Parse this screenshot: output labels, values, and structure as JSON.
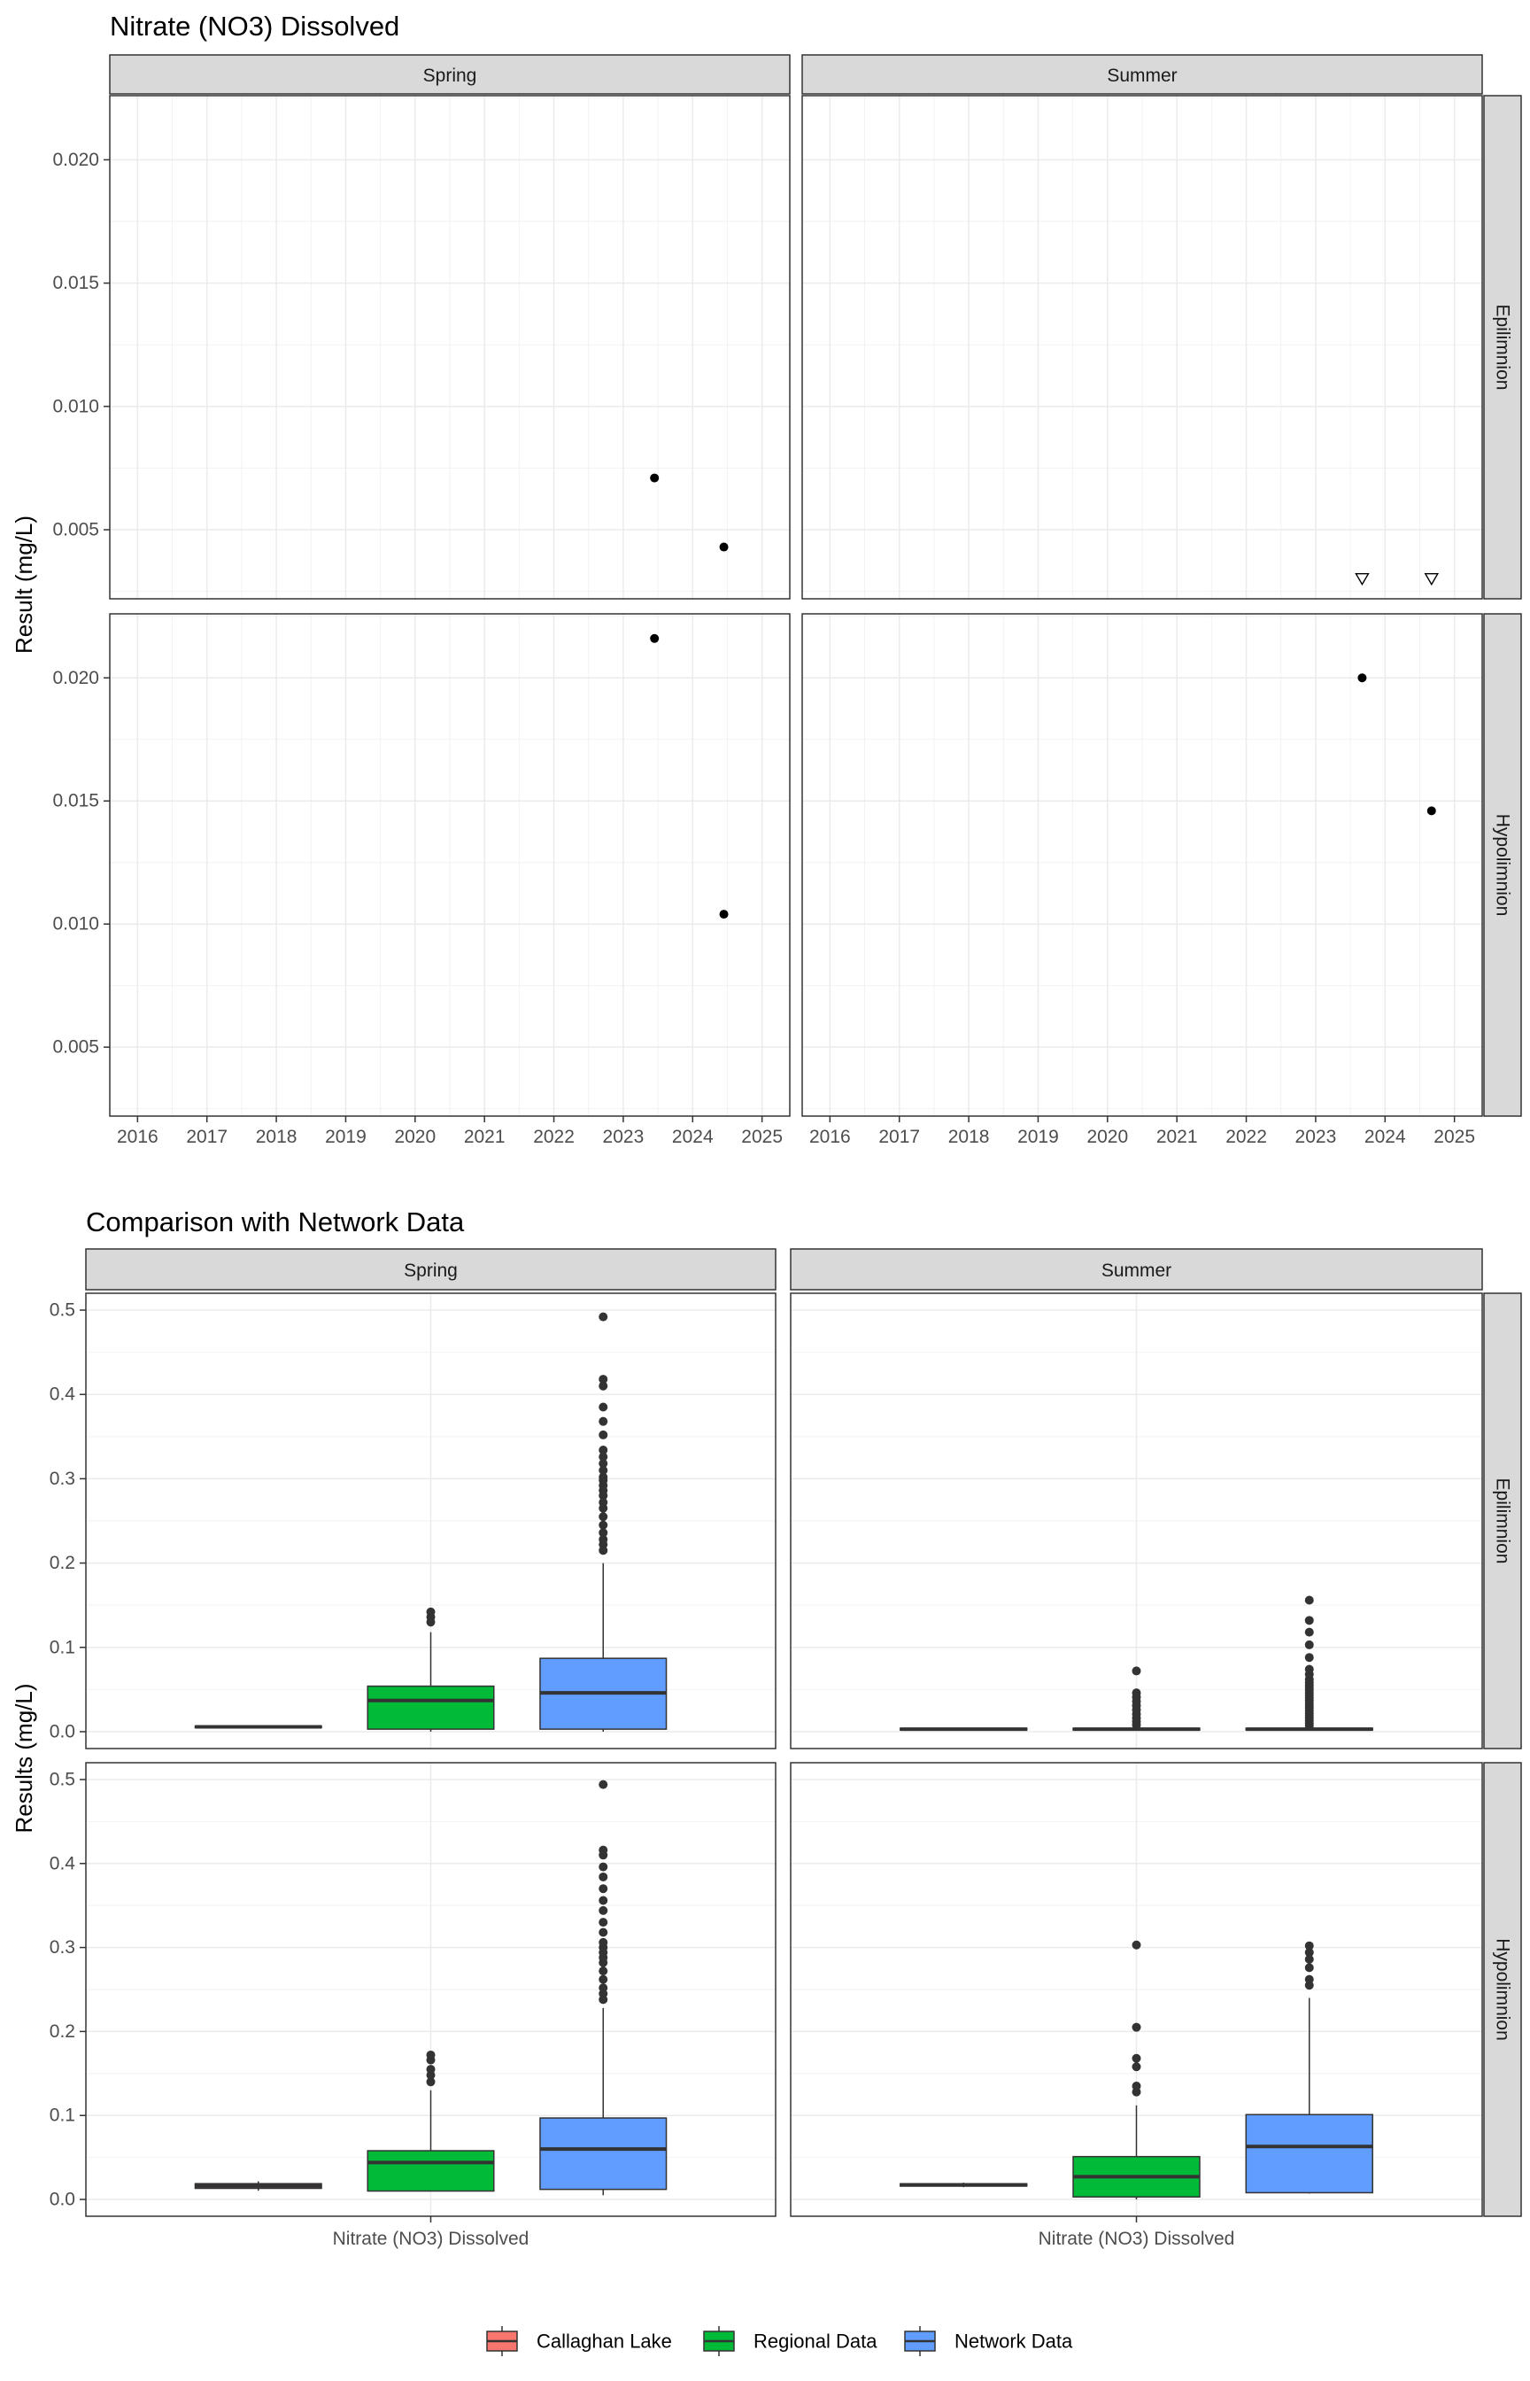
{
  "chart_data": [
    {
      "type": "scatter",
      "title": "Nitrate (NO3) Dissolved",
      "ylabel": "Result (mg/L)",
      "xlabel": "",
      "columns": [
        "Spring",
        "Summer"
      ],
      "rows": [
        "Epilimnion",
        "Hypolimnion"
      ],
      "x_ticks": [
        "2016",
        "2017",
        "2018",
        "2019",
        "2020",
        "2021",
        "2022",
        "2023",
        "2024",
        "2025"
      ],
      "xlim": [
        2015.6,
        2025.4
      ],
      "ylim_by_row": [
        [
          0.0022,
          0.0226
        ],
        [
          0.0022,
          0.0226
        ]
      ],
      "y_ticks": [
        "0.005",
        "0.010",
        "0.015",
        "0.020"
      ],
      "y_tick_values": [
        0.005,
        0.01,
        0.015,
        0.02
      ],
      "grid": true,
      "panels": [
        {
          "row": "Epilimnion",
          "col": "Spring",
          "points": [
            {
              "x": 2023.45,
              "y": 0.0071,
              "shape": "circle"
            },
            {
              "x": 2024.45,
              "y": 0.0043,
              "shape": "circle"
            }
          ]
        },
        {
          "row": "Epilimnion",
          "col": "Summer",
          "points": [
            {
              "x": 2023.67,
              "y": 0.003,
              "shape": "triangle-down"
            },
            {
              "x": 2024.67,
              "y": 0.003,
              "shape": "triangle-down"
            }
          ]
        },
        {
          "row": "Hypolimnion",
          "col": "Spring",
          "points": [
            {
              "x": 2023.45,
              "y": 0.0216,
              "shape": "circle"
            },
            {
              "x": 2024.45,
              "y": 0.0104,
              "shape": "circle"
            }
          ]
        },
        {
          "row": "Hypolimnion",
          "col": "Summer",
          "points": [
            {
              "x": 2023.67,
              "y": 0.02,
              "shape": "circle"
            },
            {
              "x": 2024.67,
              "y": 0.0146,
              "shape": "circle"
            }
          ]
        }
      ]
    },
    {
      "type": "box",
      "title": "Comparison with Network Data",
      "ylabel": "Results (mg/L)",
      "category_label": "Nitrate (NO3) Dissolved",
      "columns": [
        "Spring",
        "Summer"
      ],
      "rows": [
        "Epilimnion",
        "Hypolimnion"
      ],
      "ylim": [
        -0.02,
        0.52
      ],
      "y_ticks": [
        "0.0",
        "0.1",
        "0.2",
        "0.3",
        "0.4",
        "0.5"
      ],
      "y_tick_values": [
        0.0,
        0.1,
        0.2,
        0.3,
        0.4,
        0.5
      ],
      "grid": true,
      "legend_position": "bottom",
      "legend": [
        {
          "name": "Callaghan Lake",
          "color": "#F8766D"
        },
        {
          "name": "Regional Data",
          "color": "#00BA38"
        },
        {
          "name": "Network Data",
          "color": "#619CFF"
        }
      ],
      "panels": [
        {
          "row": "Epilimnion",
          "col": "Spring",
          "boxes": [
            {
              "group": "Callaghan Lake",
              "min": 0.0043,
              "q1": 0.0048,
              "median": 0.0057,
              "q3": 0.0066,
              "max": 0.0071,
              "outliers": []
            },
            {
              "group": "Regional Data",
              "min": 0.0,
              "q1": 0.003,
              "median": 0.037,
              "q3": 0.054,
              "max": 0.118,
              "outliers": [
                0.13,
                0.136,
                0.142
              ]
            },
            {
              "group": "Network Data",
              "min": 0.0,
              "q1": 0.003,
              "median": 0.046,
              "q3": 0.087,
              "max": 0.2,
              "outliers": [
                0.215,
                0.222,
                0.228,
                0.236,
                0.245,
                0.255,
                0.265,
                0.272,
                0.28,
                0.286,
                0.292,
                0.298,
                0.302,
                0.31,
                0.318,
                0.326,
                0.334,
                0.352,
                0.368,
                0.385,
                0.41,
                0.418,
                0.492
              ]
            }
          ]
        },
        {
          "row": "Epilimnion",
          "col": "Summer",
          "boxes": [
            {
              "group": "Callaghan Lake",
              "min": 0.003,
              "q1": 0.003,
              "median": 0.003,
              "q3": 0.003,
              "max": 0.003,
              "outliers": []
            },
            {
              "group": "Regional Data",
              "min": 0.002,
              "q1": 0.002,
              "median": 0.003,
              "q3": 0.004,
              "max": 0.005,
              "outliers": [
                0.008,
                0.012,
                0.016,
                0.021,
                0.026,
                0.031,
                0.036,
                0.041,
                0.046,
                0.072
              ]
            },
            {
              "group": "Network Data",
              "min": 0.002,
              "q1": 0.002,
              "median": 0.003,
              "q3": 0.004,
              "max": 0.005,
              "outliers": [
                0.007,
                0.01,
                0.013,
                0.016,
                0.019,
                0.022,
                0.025,
                0.028,
                0.031,
                0.034,
                0.037,
                0.04,
                0.043,
                0.046,
                0.049,
                0.052,
                0.055,
                0.058,
                0.062,
                0.068,
                0.074,
                0.088,
                0.103,
                0.118,
                0.132,
                0.156
              ]
            }
          ]
        },
        {
          "row": "Hypolimnion",
          "col": "Spring",
          "boxes": [
            {
              "group": "Callaghan Lake",
              "min": 0.0104,
              "q1": 0.0132,
              "median": 0.016,
              "q3": 0.0188,
              "max": 0.0216,
              "outliers": []
            },
            {
              "group": "Regional Data",
              "min": 0.01,
              "q1": 0.01,
              "median": 0.044,
              "q3": 0.058,
              "max": 0.13,
              "outliers": [
                0.14,
                0.148,
                0.155,
                0.166,
                0.172
              ]
            },
            {
              "group": "Network Data",
              "min": 0.005,
              "q1": 0.012,
              "median": 0.06,
              "q3": 0.097,
              "max": 0.228,
              "outliers": [
                0.238,
                0.245,
                0.252,
                0.262,
                0.272,
                0.282,
                0.288,
                0.294,
                0.3,
                0.306,
                0.318,
                0.33,
                0.344,
                0.356,
                0.37,
                0.384,
                0.396,
                0.41,
                0.416,
                0.494
              ]
            }
          ]
        },
        {
          "row": "Hypolimnion",
          "col": "Summer",
          "boxes": [
            {
              "group": "Callaghan Lake",
              "min": 0.0146,
              "q1": 0.0159,
              "median": 0.0173,
              "q3": 0.0187,
              "max": 0.02,
              "outliers": []
            },
            {
              "group": "Regional Data",
              "min": 0.0,
              "q1": 0.003,
              "median": 0.027,
              "q3": 0.051,
              "max": 0.112,
              "outliers": [
                0.128,
                0.135,
                0.158,
                0.168,
                0.205,
                0.303
              ]
            },
            {
              "group": "Network Data",
              "min": 0.007,
              "q1": 0.008,
              "median": 0.063,
              "q3": 0.101,
              "max": 0.24,
              "outliers": [
                0.255,
                0.262,
                0.276,
                0.286,
                0.294,
                0.302
              ]
            }
          ]
        }
      ]
    }
  ]
}
